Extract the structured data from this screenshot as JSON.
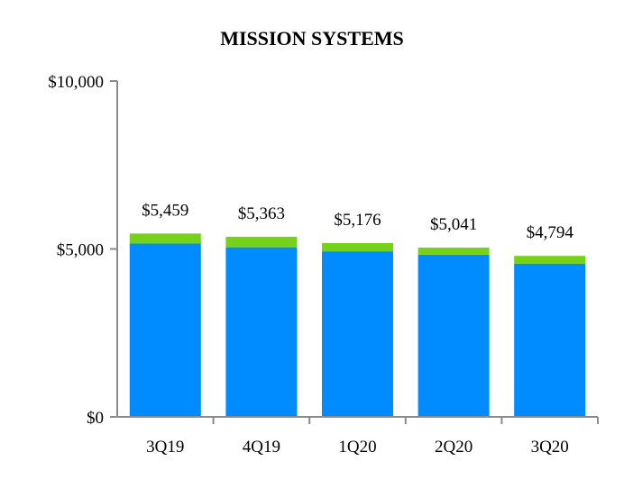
{
  "chart_data": {
    "type": "bar",
    "stacked": true,
    "title": "MISSION SYSTEMS",
    "categories": [
      "3Q19",
      "4Q19",
      "1Q20",
      "2Q20",
      "3Q20"
    ],
    "series": [
      {
        "values": [
          5160,
          5050,
          4930,
          4830,
          4560
        ],
        "color": "#008cff"
      },
      {
        "values": [
          299,
          313,
          246,
          211,
          234
        ],
        "color": "#76d11a"
      }
    ],
    "totals": [
      5459,
      5363,
      5176,
      5041,
      4794
    ],
    "total_labels": [
      "$5,459",
      "$5,363",
      "$5,176",
      "$5,041",
      "$4,794"
    ],
    "y_ticks": [
      0,
      5000,
      10000
    ],
    "y_tick_labels": [
      "$0",
      "$5,000",
      "$10,000"
    ],
    "ylim": [
      0,
      10000
    ],
    "xlabel": "",
    "ylabel": "",
    "grid": false,
    "legend": "none"
  }
}
